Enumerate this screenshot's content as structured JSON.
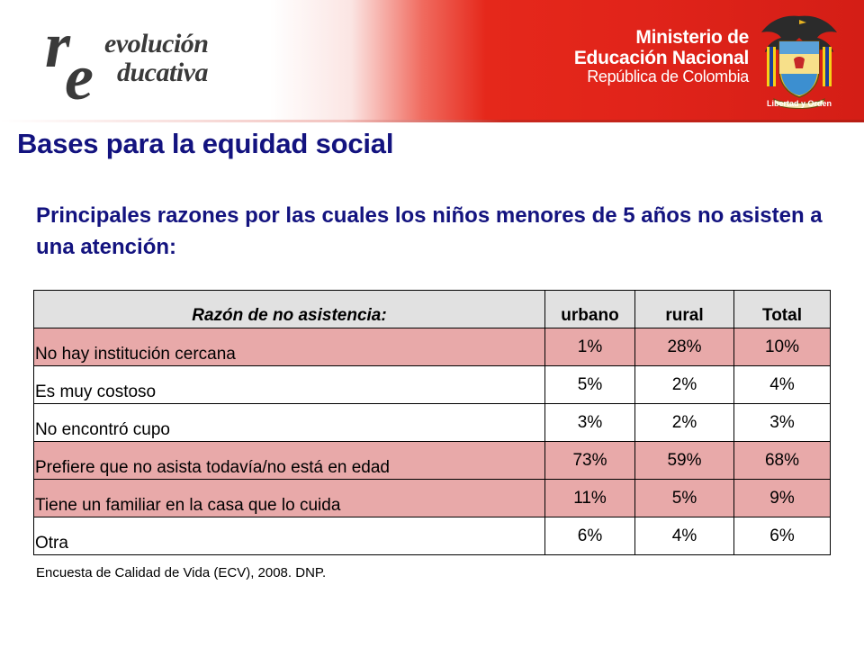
{
  "header": {
    "logo_line1": "evolución",
    "logo_line2": "ducativa",
    "logo_big_r": "r",
    "logo_big_e": "e",
    "ministry_line1": "Ministerio de",
    "ministry_line2": "Educación Nacional",
    "ministry_line3": "República de Colombia",
    "crest_motto": "Libertad y Orden"
  },
  "title": "Bases para la equidad social",
  "subtitle": "Principales razones por las cuales los niños menores de 5 años no asisten a una atención:",
  "table": {
    "headers": [
      "Razón de no asistencia:",
      "urbano",
      "rural",
      "Total"
    ],
    "rows": [
      {
        "reason": "No hay institución cercana",
        "urbano": "1%",
        "rural": "28%",
        "total": "10%",
        "style": "pink"
      },
      {
        "reason": "Es muy costoso",
        "urbano": "5%",
        "rural": "2%",
        "total": "4%",
        "style": "white"
      },
      {
        "reason": "No encontró cupo",
        "urbano": "3%",
        "rural": "2%",
        "total": "3%",
        "style": "white"
      },
      {
        "reason": "Prefiere que no asista todavía/no está en edad",
        "urbano": "73%",
        "rural": "59%",
        "total": "68%",
        "style": "pink"
      },
      {
        "reason": "Tiene un familiar en la casa que lo cuida",
        "urbano": "11%",
        "rural": "5%",
        "total": "9%",
        "style": "pink"
      },
      {
        "reason": "Otra",
        "urbano": "6%",
        "rural": "4%",
        "total": "6%",
        "style": "white"
      }
    ]
  },
  "source": "Encuesta de Calidad de Vida (ECV), 2008. DNP.",
  "colors": {
    "title": "#13137f",
    "header_red": "#e1241a",
    "row_pink": "#e8a9a9",
    "table_header_gray": "#e1e1e1"
  }
}
